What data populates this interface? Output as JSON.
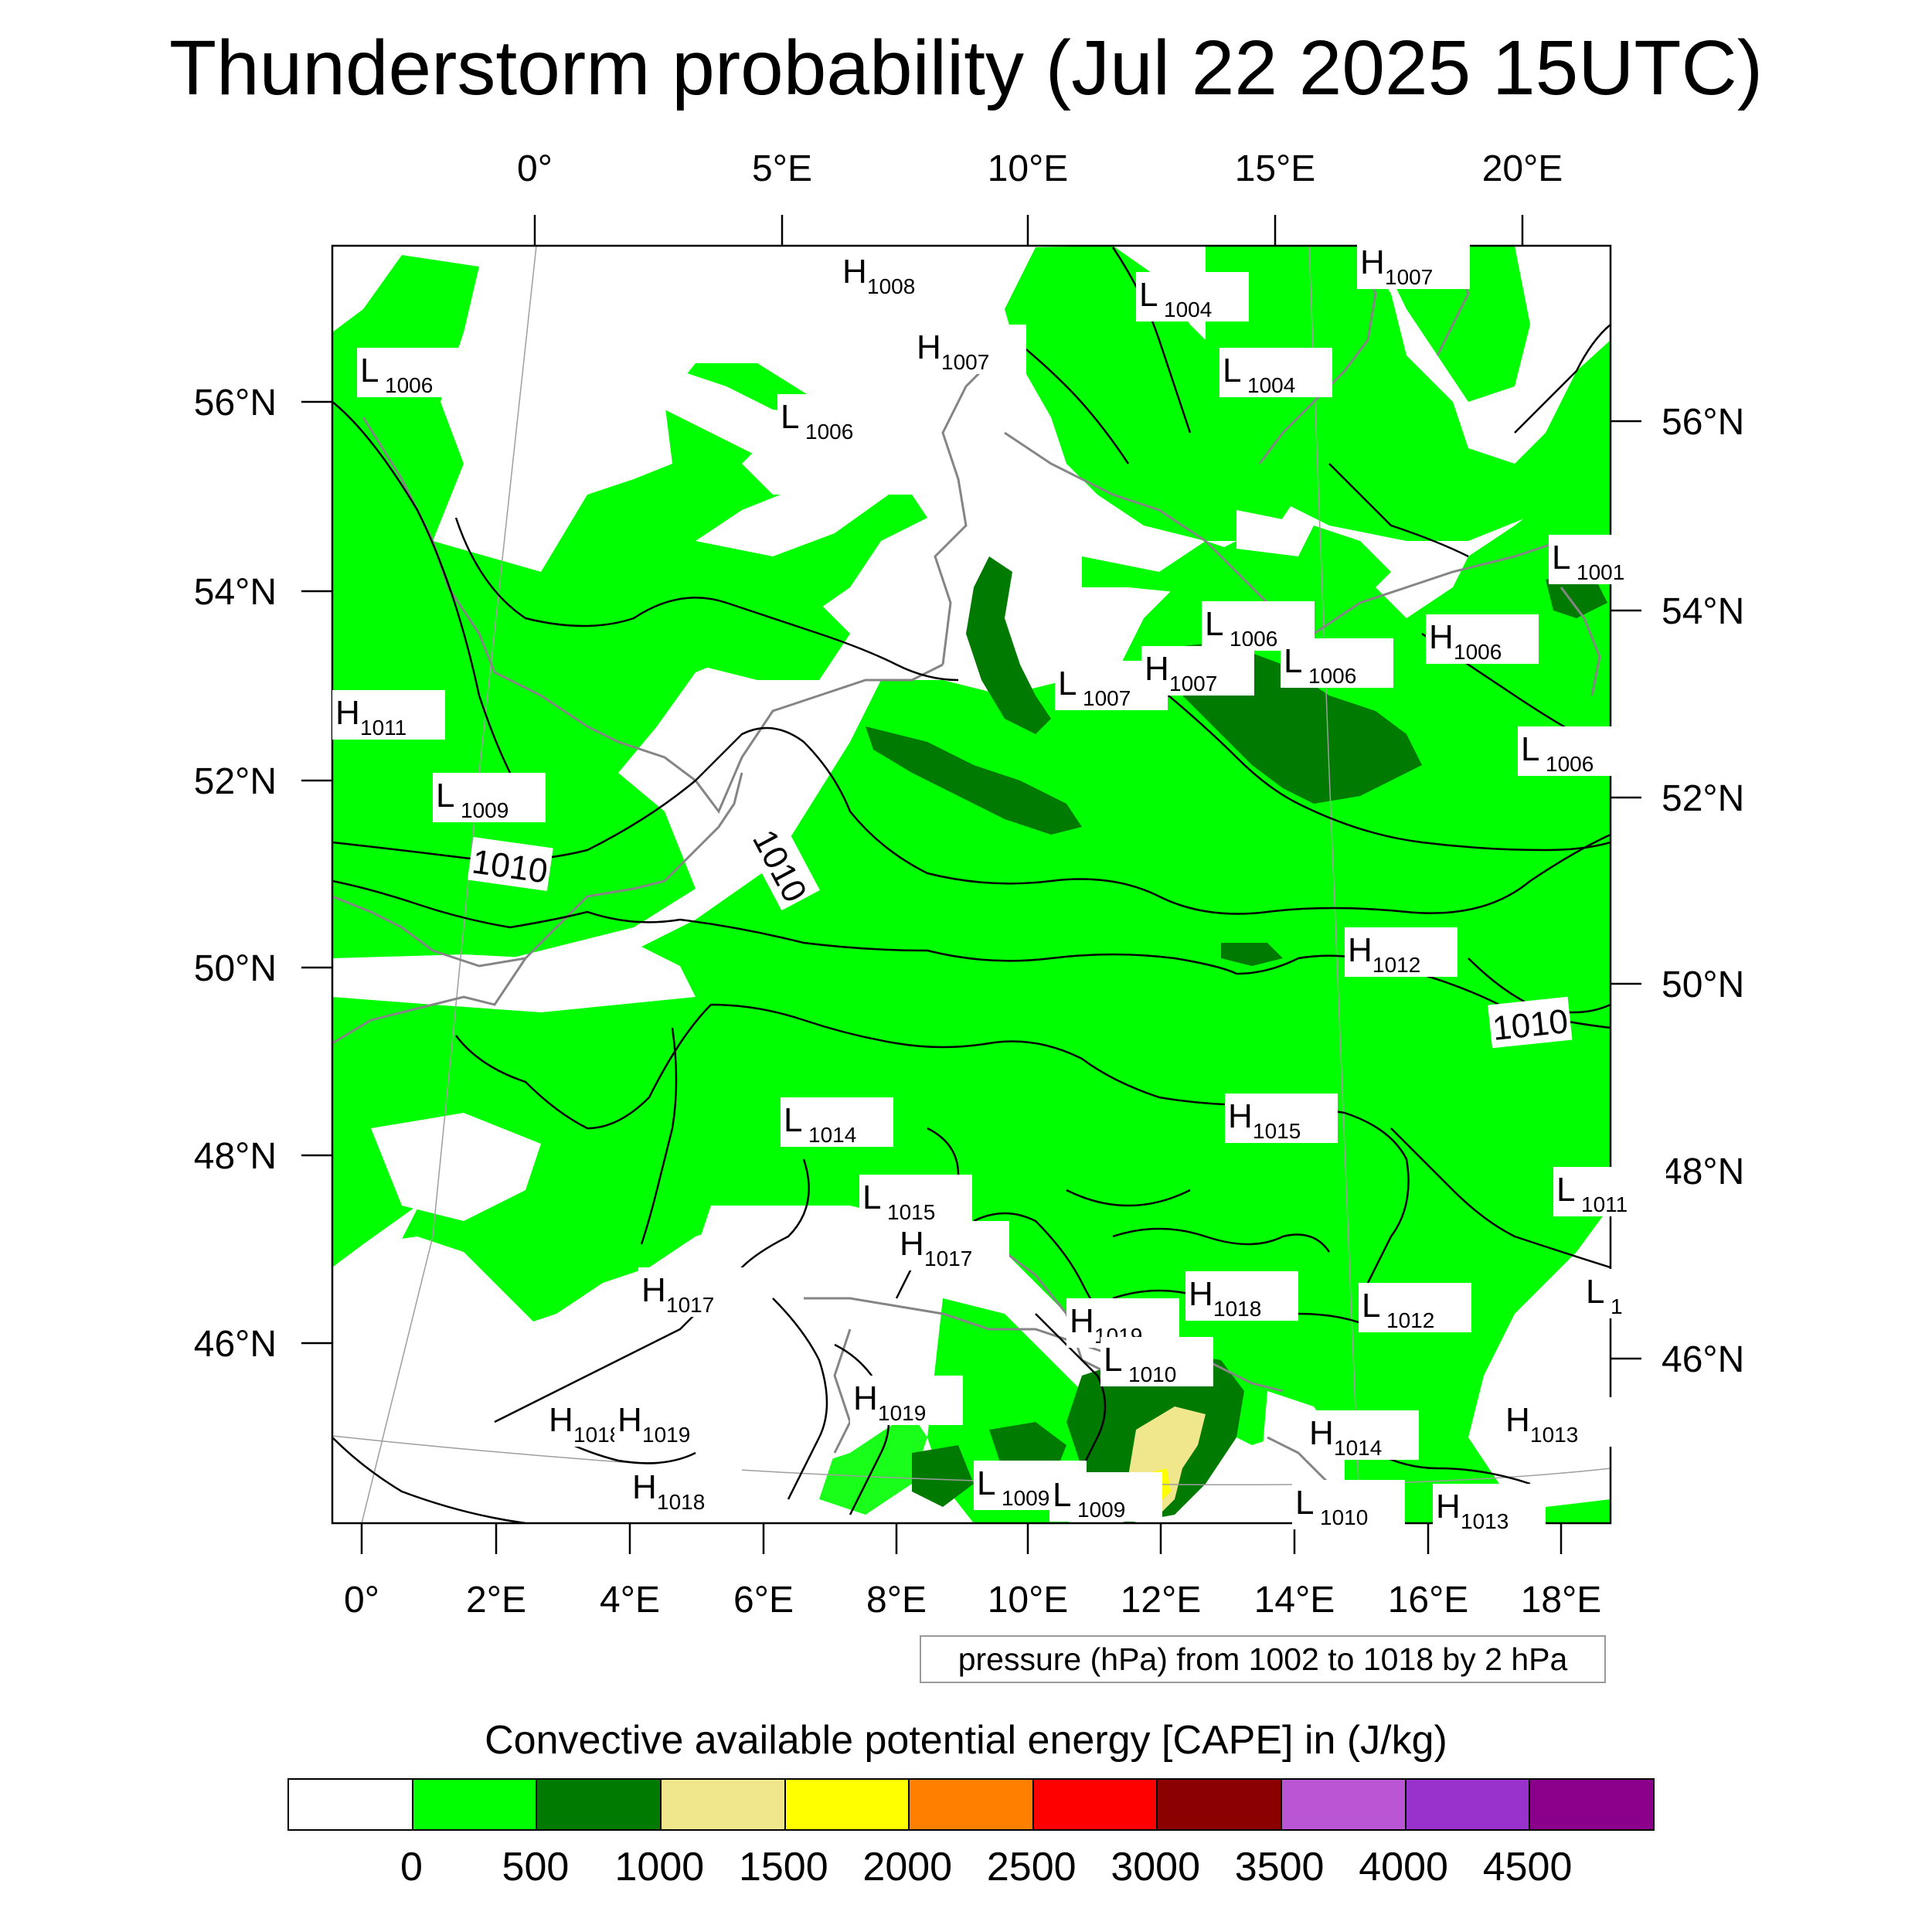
{
  "title": "Thunderstorm probability (Jul 22 2025 15UTC)",
  "top_axis_labels": [
    "0°",
    "5°E",
    "10°E",
    "15°E",
    "20°E"
  ],
  "bottom_axis_labels": [
    "0°",
    "2°E",
    "4°E",
    "6°E",
    "8°E",
    "10°E",
    "12°E",
    "14°E",
    "16°E",
    "18°E"
  ],
  "left_axis_labels": [
    "56°N",
    "54°N",
    "52°N",
    "50°N",
    "48°N",
    "46°N"
  ],
  "right_axis_labels": [
    "56°N",
    "54°N",
    "52°N",
    "50°N",
    "48°N",
    "46°N"
  ],
  "pressure_note": "pressure (hPa) from 1002 to 1018 by 2 hPa",
  "colorbar": {
    "title": "Convective available potential energy [CAPE] in (J/kg)",
    "colors": [
      "#ffffff",
      "#00ff00",
      "#007a00",
      "#f0e68c",
      "#ffff00",
      "#ff8000",
      "#ff0000",
      "#8b0000",
      "#ba55d3",
      "#9932cc",
      "#8b008b"
    ],
    "tick_labels": [
      "0",
      "500",
      "1000",
      "1500",
      "2000",
      "2500",
      "3000",
      "3500",
      "4000",
      "4500"
    ]
  },
  "isobar_labels": [
    "1010",
    "1010",
    "1010"
  ],
  "pressure_centers": [
    {
      "type": "H",
      "value": "1008"
    },
    {
      "type": "H",
      "value": "1007"
    },
    {
      "type": "L",
      "value": "1004"
    },
    {
      "type": "H",
      "value": "1007"
    },
    {
      "type": "L",
      "value": "1006"
    },
    {
      "type": "L",
      "value": "1004"
    },
    {
      "type": "L",
      "value": "1006"
    },
    {
      "type": "L",
      "value": "1001"
    },
    {
      "type": "L",
      "value": "1006"
    },
    {
      "type": "H",
      "value": "1006"
    },
    {
      "type": "L",
      "value": "1006"
    },
    {
      "type": "L",
      "value": "1007"
    },
    {
      "type": "H",
      "value": "1007"
    },
    {
      "type": "H",
      "value": "1011"
    },
    {
      "type": "L",
      "value": "1006"
    },
    {
      "type": "L",
      "value": "1009"
    },
    {
      "type": "H",
      "value": "1012"
    },
    {
      "type": "L",
      "value": "1014"
    },
    {
      "type": "H",
      "value": "1015"
    },
    {
      "type": "L",
      "value": "1015"
    },
    {
      "type": "H",
      "value": "1017"
    },
    {
      "type": "L",
      "value": "1011"
    },
    {
      "type": "H",
      "value": "1017"
    },
    {
      "type": "H",
      "value": "1018"
    },
    {
      "type": "H",
      "value": "1019"
    },
    {
      "type": "L",
      "value": "1012"
    },
    {
      "type": "L",
      "value": "1"
    },
    {
      "type": "L",
      "value": "1010"
    },
    {
      "type": "H",
      "value": "1019"
    },
    {
      "type": "H",
      "value": "1018"
    },
    {
      "type": "H",
      "value": "1019"
    },
    {
      "type": "H",
      "value": "1014"
    },
    {
      "type": "H",
      "value": "1013"
    },
    {
      "type": "H",
      "value": "1018"
    },
    {
      "type": "L",
      "value": "1009"
    },
    {
      "type": "L",
      "value": "1009"
    },
    {
      "type": "L",
      "value": "1010"
    },
    {
      "type": "H",
      "value": "1013"
    }
  ]
}
